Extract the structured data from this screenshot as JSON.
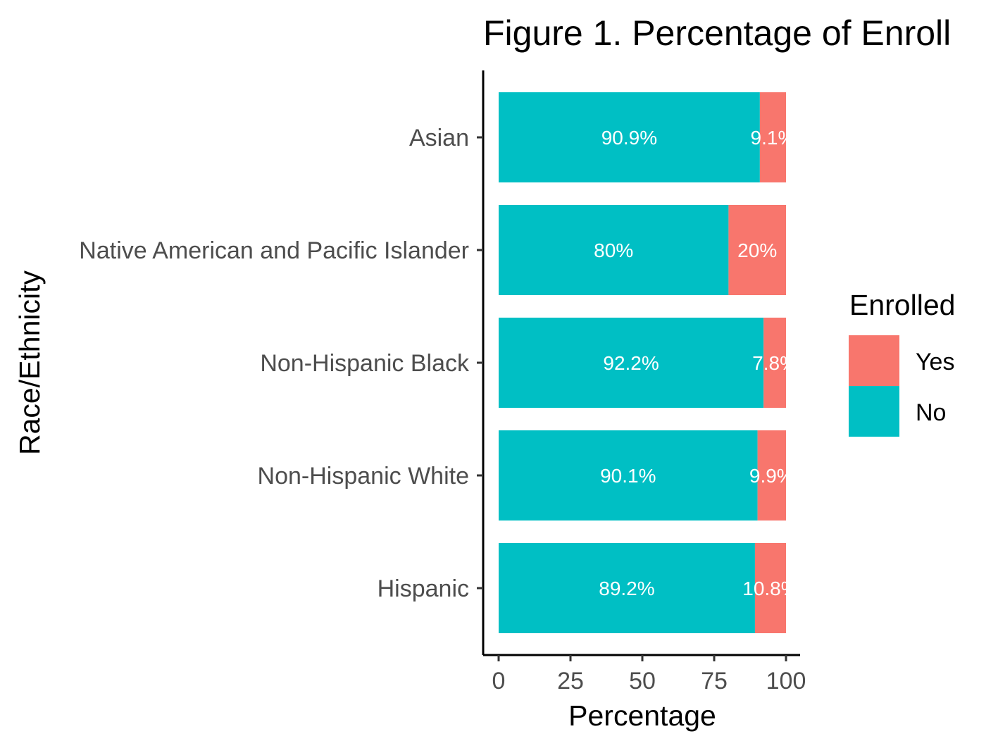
{
  "chart_data": {
    "type": "bar",
    "orientation": "horizontal",
    "stacked": true,
    "title": "Figure 1. Percentage of Enroll",
    "xlabel": "Percentage",
    "ylabel": "Race/Ethnicity",
    "xlim": [
      0,
      100
    ],
    "xticks": [
      "0",
      "25",
      "50",
      "75",
      "100"
    ],
    "grid": false,
    "legend": {
      "title": "Enrolled",
      "position": "right",
      "entries": [
        "Yes",
        "No"
      ]
    },
    "categories": [
      "Asian",
      "Native American and Pacific Islander",
      "Non-Hispanic Black",
      "Non-Hispanic White",
      "Hispanic"
    ],
    "series": [
      {
        "name": "No",
        "color": "#00BFC4",
        "values": [
          90.9,
          80,
          92.2,
          90.1,
          89.2
        ],
        "labels": [
          "90.9%",
          "80%",
          "92.2%",
          "90.1%",
          "89.2%"
        ]
      },
      {
        "name": "Yes",
        "color": "#F8766D",
        "values": [
          9.1,
          20,
          7.8,
          9.9,
          10.8
        ],
        "labels": [
          "9.1%",
          "20%",
          "7.8%",
          "9.9%",
          "10.8%"
        ]
      }
    ]
  }
}
